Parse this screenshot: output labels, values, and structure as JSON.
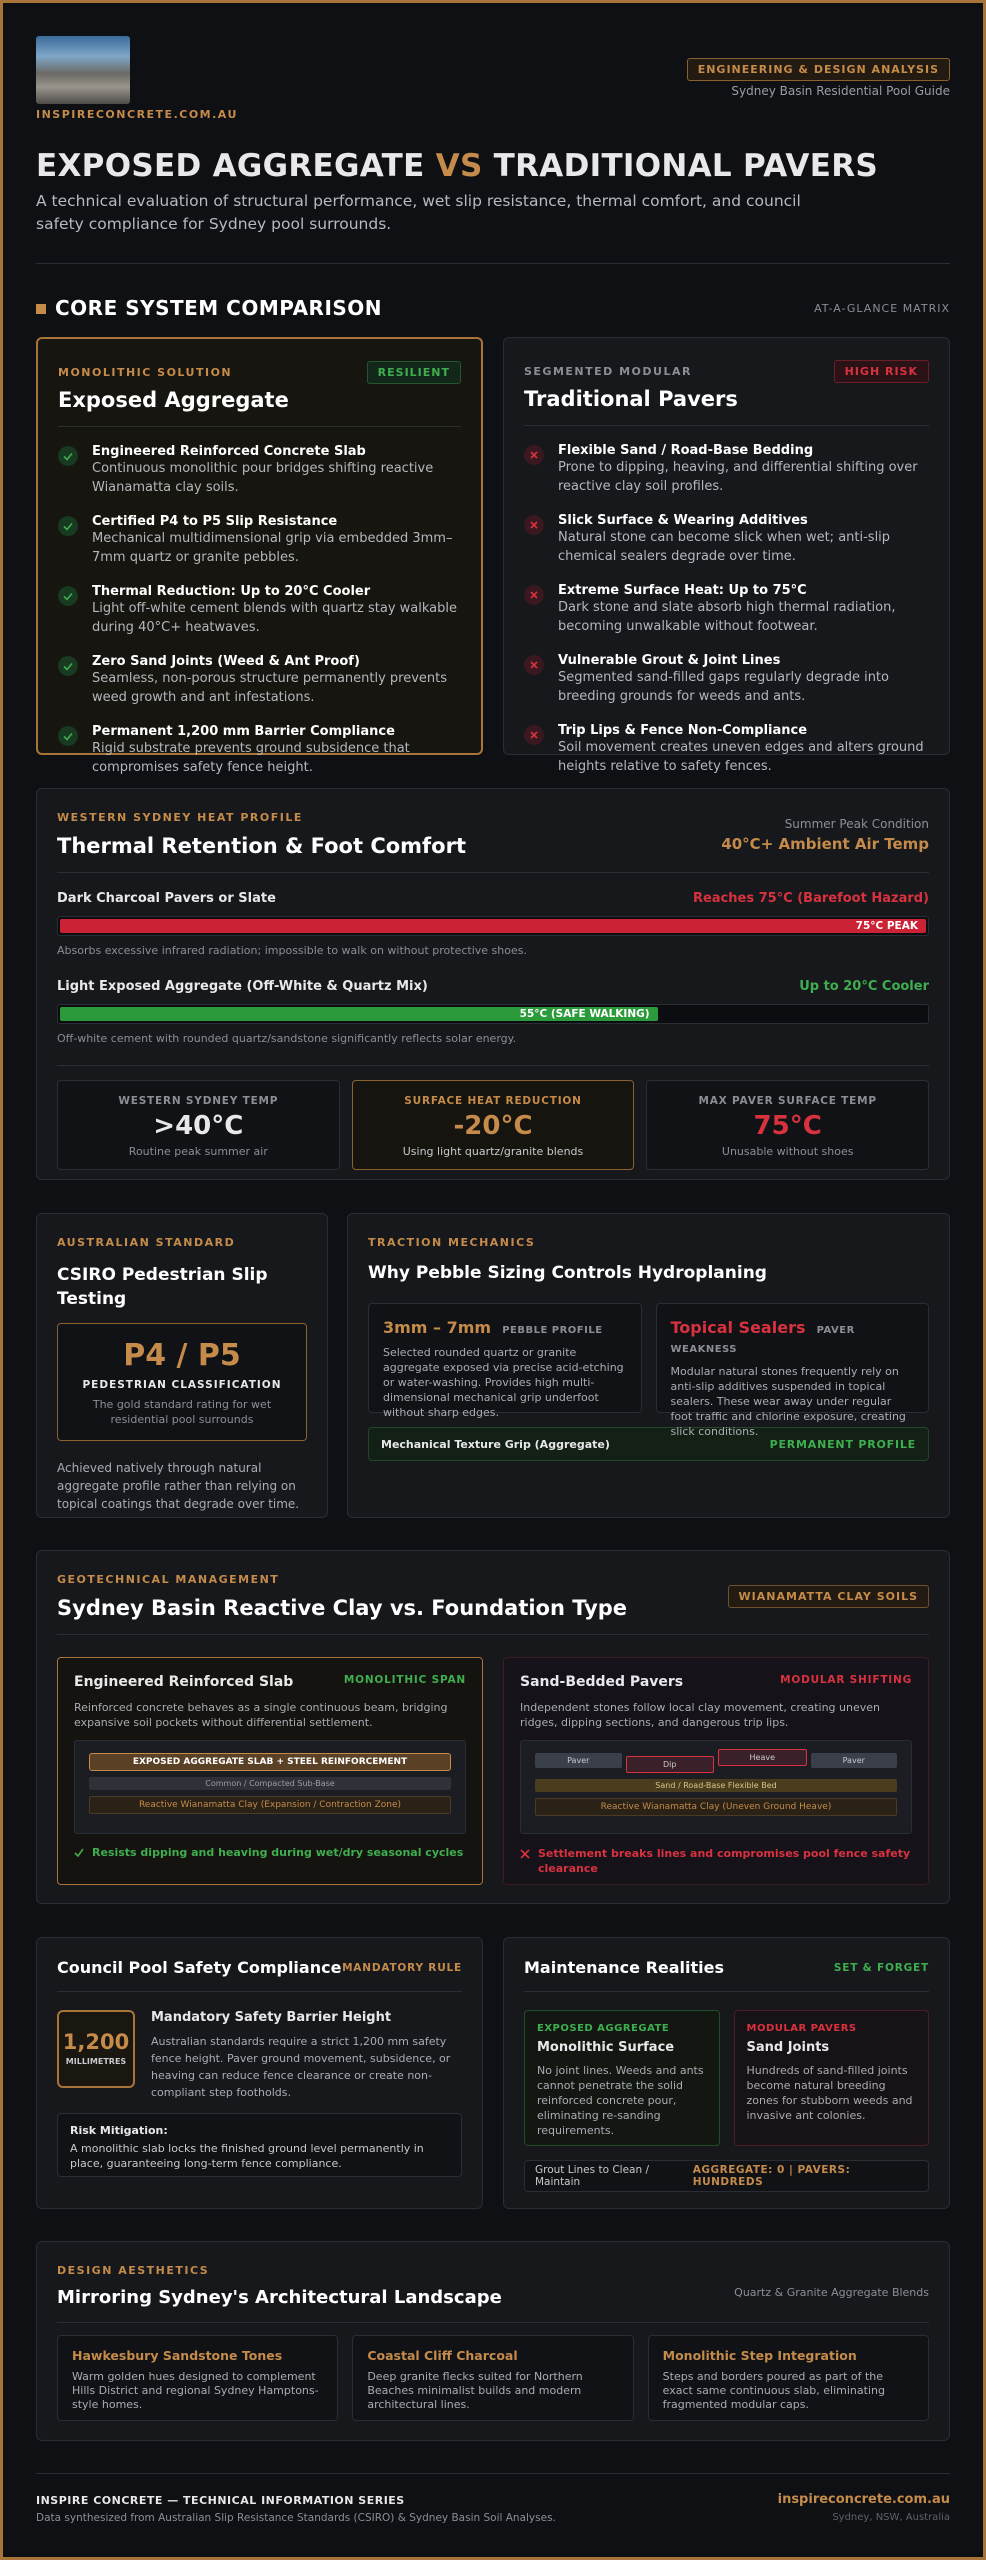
{
  "header": {
    "logo_text": "INSPIRECONCRETE.COM.AU",
    "badge": "ENGINEERING & DESIGN ANALYSIS",
    "guide": "Sydney Basin Residential Pool Guide"
  },
  "hero": {
    "title_part1": "EXPOSED AGGREGATE",
    "vs": "VS",
    "title_part2": "TRADITIONAL PAVERS",
    "subtitle": "A technical evaluation of structural performance, wet slip resistance, thermal comfort, and council safety compliance for Sydney pool surrounds."
  },
  "comparison": {
    "heading": "CORE SYSTEM COMPARISON",
    "tag": "AT-A-GLANCE MATRIX",
    "cards": [
      {
        "kicker": "MONOLITHIC SOLUTION",
        "badge": "RESILIENT",
        "title": "Exposed Aggregate",
        "items": [
          {
            "title": "Engineered Reinforced Concrete Slab",
            "text": "Continuous monolithic pour bridges shifting reactive Wianamatta clay soils."
          },
          {
            "title": "Certified P4 to P5 Slip Resistance",
            "text": "Mechanical multidimensional grip via embedded 3mm–7mm quartz or granite pebbles."
          },
          {
            "title": "Thermal Reduction: Up to 20°C Cooler",
            "text": "Light off-white cement blends with quartz stay walkable during 40°C+ heatwaves."
          },
          {
            "title": "Zero Sand Joints (Weed & Ant Proof)",
            "text": "Seamless, non-porous structure permanently prevents weed growth and ant infestations."
          },
          {
            "title": "Permanent 1,200 mm Barrier Compliance",
            "text": "Rigid substrate prevents ground subsidence that compromises safety fence height."
          }
        ]
      },
      {
        "kicker": "SEGMENTED MODULAR",
        "badge": "HIGH RISK",
        "title": "Traditional Pavers",
        "items": [
          {
            "title": "Flexible Sand / Road-Base Bedding",
            "text": "Prone to dipping, heaving, and differential shifting over reactive clay soil profiles."
          },
          {
            "title": "Slick Surface & Wearing Additives",
            "text": "Natural stone can become slick when wet; anti-slip chemical sealers degrade over time."
          },
          {
            "title": "Extreme Surface Heat: Up to 75°C",
            "text": "Dark stone and slate absorb high thermal radiation, becoming unwalkable without footwear."
          },
          {
            "title": "Vulnerable Grout & Joint Lines",
            "text": "Segmented sand-filled gaps regularly degrade into breeding grounds for weeds and ants."
          },
          {
            "title": "Trip Lips & Fence Non-Compliance",
            "text": "Soil movement creates uneven edges and alters ground heights relative to safety fences."
          }
        ]
      }
    ]
  },
  "thermal": {
    "kicker": "WESTERN SYDNEY HEAT PROFILE",
    "title": "Thermal Retention & Foot Comfort",
    "cond_label": "Summer Peak Condition",
    "cond_value": "40°C+ Ambient Air Temp",
    "rows": [
      {
        "label": "Dark Charcoal Pavers or Slate",
        "status": "Reaches 75°C (Barefoot Hazard)",
        "bar_label": "75°C PEAK",
        "note": "Absorbs excessive infrared radiation; impossible to walk on without protective shoes."
      },
      {
        "label": "Light Exposed Aggregate (Off-White & Quartz Mix)",
        "status": "Up to 20°C Cooler",
        "bar_label": "55°C (SAFE WALKING)",
        "note": "Off-white cement with rounded quartz/sandstone significantly reflects solar energy."
      }
    ],
    "stats": [
      {
        "label": "WESTERN SYDNEY TEMP",
        "value": ">40°C",
        "note": "Routine peak summer air"
      },
      {
        "label": "SURFACE HEAT REDUCTION",
        "value": "-20°C",
        "note": "Using light quartz/granite blends"
      },
      {
        "label": "MAX PAVER SURFACE TEMP",
        "value": "75°C",
        "note": "Unusable without shoes"
      }
    ]
  },
  "slip": {
    "kicker": "AUSTRALIAN STANDARD",
    "title": "CSIRO Pedestrian Slip Testing",
    "rating": "P4 / P5",
    "rating_label": "PEDESTRIAN CLASSIFICATION",
    "rating_note": "The gold standard rating for wet residential pool surrounds",
    "text": "Achieved natively through natural aggregate profile rather than relying on topical coatings that degrade over time."
  },
  "traction": {
    "kicker": "TRACTION MECHANICS",
    "title": "Why Pebble Sizing Controls Hydroplaning",
    "boxes": [
      {
        "head": "3mm – 7mm",
        "tag": "PEBBLE PROFILE",
        "text": "Selected rounded quartz or granite aggregate exposed via precise acid-etching or water-washing. Provides high multi-dimensional mechanical grip underfoot without sharp edges."
      },
      {
        "head": "Topical Sealers",
        "tag": "PAVER WEAKNESS",
        "text": "Modular natural stones frequently rely on anti-slip additives suspended in topical sealers. These wear away under regular foot traffic and chlorine exposure, creating slick conditions."
      }
    ],
    "bar": {
      "label": "Mechanical Texture Grip (Aggregate)",
      "status": "PERMANENT PROFILE"
    }
  },
  "geotech": {
    "kicker": "GEOTECHNICAL MANAGEMENT",
    "title": "Sydney Basin Reactive Clay vs. Foundation Type",
    "badge": "WIANAMATTA CLAY SOILS",
    "panels": [
      {
        "title": "Engineered Reinforced Slab",
        "tag": "MONOLITHIC SPAN",
        "text": "Reinforced concrete behaves as a single continuous beam, bridging expansive soil pockets without differential settlement.",
        "layers": [
          "EXPOSED AGGREGATE SLAB + STEEL REINFORCEMENT",
          "Common / Compacted Sub-Base",
          "Reactive Wianamatta Clay (Expansion / Contraction Zone)"
        ],
        "result": "Resists dipping and heaving during wet/dry seasonal cycles"
      },
      {
        "title": "Sand-Bedded Pavers",
        "tag": "MODULAR SHIFTING",
        "text": "Independent stones follow local clay movement, creating uneven ridges, dipping sections, and dangerous trip lips.",
        "pavers": [
          "Paver",
          "Dip",
          "Heave",
          "Paver"
        ],
        "layers": [
          "Sand / Road-Base Flexible Bed",
          "Reactive Wianamatta Clay (Uneven Ground Heave)"
        ],
        "result": "Settlement breaks lines and compromises pool fence safety clearance"
      }
    ]
  },
  "council": {
    "title": "Council Pool Safety Compliance",
    "tag": "MANDATORY RULE",
    "number": "1,200",
    "unit": "MILLIMETRES",
    "head": "Mandatory Safety Barrier Height",
    "text": "Australian standards require a strict 1,200 mm safety fence height. Paver ground movement, subsidence, or heaving can reduce fence clearance or create non-compliant step footholds.",
    "risk_title": "Risk Mitigation:",
    "risk_text": "A monolithic slab locks the finished ground level permanently in place, guaranteeing long-term fence compliance."
  },
  "maintenance": {
    "title": "Maintenance Realities",
    "tag": "SET & FORGET",
    "boxes": [
      {
        "kicker": "EXPOSED AGGREGATE",
        "title": "Monolithic Surface",
        "text": "No joint lines. Weeds and ants cannot penetrate the solid reinforced concrete pour, eliminating re-sanding requirements."
      },
      {
        "kicker": "MODULAR PAVERS",
        "title": "Sand Joints",
        "text": "Hundreds of sand-filled joints become natural breeding zones for stubborn weeds and invasive ant colonies."
      }
    ],
    "bar": {
      "label": "Grout Lines to Clean / Maintain",
      "value": "AGGREGATE: 0 | PAVERS: HUNDREDS"
    }
  },
  "design": {
    "kicker": "DESIGN AESTHETICS",
    "title": "Mirroring Sydney's Architectural Landscape",
    "side": "Quartz & Granite Aggregate Blends",
    "cards": [
      {
        "title": "Hawkesbury Sandstone Tones",
        "text": "Warm golden hues designed to complement Hills District and regional Sydney Hamptons-style homes."
      },
      {
        "title": "Coastal Cliff Charcoal",
        "text": "Deep granite flecks suited for Northern Beaches minimalist builds and modern architectural lines."
      },
      {
        "title": "Monolithic Step Integration",
        "text": "Steps and borders poured as part of the exact same continuous slab, eliminating fragmented modular caps."
      }
    ]
  },
  "footer": {
    "title": "INSPIRE CONCRETE — TECHNICAL INFORMATION SERIES",
    "text": "Data synthesized from Australian Slip Resistance Standards (CSIRO) & Sydney Basin Soil Analyses.",
    "url": "inspireconcrete.com.au",
    "location": "Sydney, NSW, Australia"
  }
}
